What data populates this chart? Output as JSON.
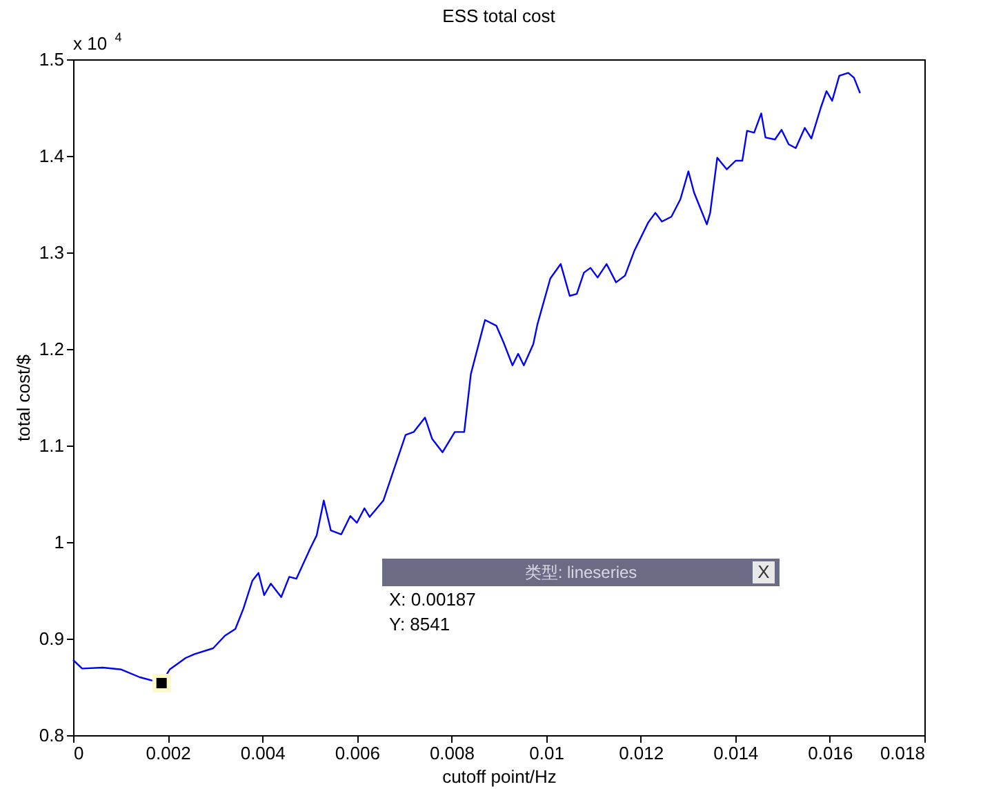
{
  "chart_data": {
    "type": "line",
    "title": "ESS total cost",
    "xlabel": "cutoff point/Hz",
    "ylabel": "total cost/$",
    "xlim": [
      0,
      0.018
    ],
    "xticks": [
      0,
      0.002,
      0.004,
      0.006,
      0.008,
      0.01,
      0.012,
      0.014,
      0.016,
      0.018
    ],
    "ylim": [
      0.8,
      1.5
    ],
    "yticks": [
      0.8,
      0.9,
      1,
      1.1,
      1.2,
      1.3,
      1.4,
      1.5
    ],
    "grid": false,
    "marker": "none",
    "line_style": "solid",
    "x": [
      0,
      0.00019,
      0.00063,
      0.00102,
      0.00141,
      0.00187,
      0.00204,
      0.00238,
      0.00257,
      0.00296,
      0.00321,
      0.00343,
      0.0036,
      0.00379,
      0.00392,
      0.00404,
      0.00418,
      0.0044,
      0.00457,
      0.00472,
      0.00501,
      0.00515,
      0.0053,
      0.00545,
      0.00567,
      0.00586,
      0.006,
      0.00616,
      0.00627,
      0.00656,
      0.00674,
      0.00703,
      0.0072,
      0.00744,
      0.00759,
      0.00781,
      0.00807,
      0.00827,
      0.00841,
      0.00866,
      0.00871,
      0.00895,
      0.0091,
      0.00929,
      0.00941,
      0.00953,
      0.00973,
      0.00982,
      0.01009,
      0.01031,
      0.0105,
      0.01065,
      0.0108,
      0.01094,
      0.01109,
      0.01128,
      0.01148,
      0.01167,
      0.01187,
      0.01216,
      0.01231,
      0.01245,
      0.01265,
      0.01284,
      0.01301,
      0.01313,
      0.0134,
      0.01347,
      0.01362,
      0.01382,
      0.01401,
      0.01415,
      0.01425,
      0.0144,
      0.01455,
      0.01464,
      0.01484,
      0.01498,
      0.01513,
      0.01528,
      0.01547,
      0.01561,
      0.01581,
      0.01593,
      0.01605,
      0.0162,
      0.01639,
      0.01651,
      0.01664
    ],
    "series": [
      {
        "color": "#0000ff",
        "values": [
          0.878,
          0.869,
          0.87,
          0.868,
          0.86,
          0.854,
          0.868,
          0.88,
          0.884,
          0.89,
          0.903,
          0.91,
          0.931,
          0.96,
          0.968,
          0.945,
          0.957,
          0.943,
          0.964,
          0.962,
          0.993,
          1.007,
          1.043,
          1.012,
          1.008,
          1.027,
          1.02,
          1.035,
          1.026,
          1.043,
          1.069,
          1.111,
          1.114,
          1.129,
          1.107,
          1.093,
          1.114,
          1.114,
          1.174,
          1.221,
          1.23,
          1.224,
          1.207,
          1.183,
          1.195,
          1.183,
          1.205,
          1.226,
          1.273,
          1.288,
          1.255,
          1.257,
          1.279,
          1.284,
          1.274,
          1.288,
          1.269,
          1.276,
          1.302,
          1.331,
          1.341,
          1.332,
          1.337,
          1.355,
          1.384,
          1.362,
          1.329,
          1.341,
          1.398,
          1.386,
          1.395,
          1.395,
          1.426,
          1.424,
          1.444,
          1.419,
          1.417,
          1.427,
          1.412,
          1.408,
          1.429,
          1.418,
          1.45,
          1.467,
          1.457,
          1.483,
          1.486,
          1.481,
          1.465
        ]
      }
    ],
    "annotations": [
      "x 10$^{4}$",
      "X: 0.00187\nY: 8541",
      "类型: lineseries",
      "X"
    ]
  }
}
